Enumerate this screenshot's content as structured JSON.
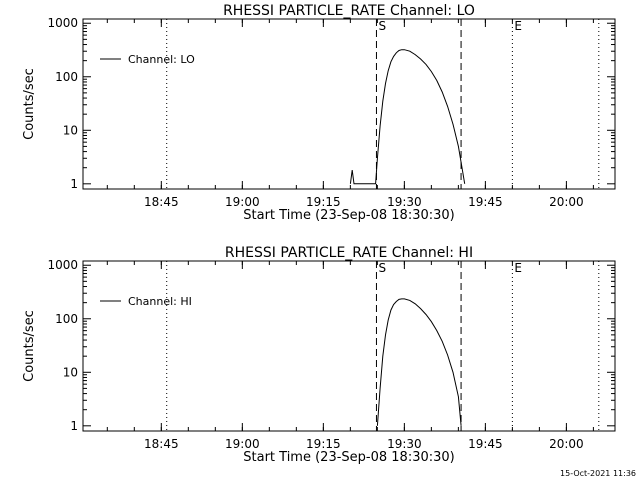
{
  "footer_timestamp": "15-Oct-2021 11:36",
  "chart_data": [
    {
      "type": "line",
      "title": "RHESSI PARTICLE_RATE Channel: LO",
      "xlabel": "Start Time (23-Sep-08 18:30:30)",
      "ylabel": "Counts/sec",
      "yscale": "log",
      "ylim": [
        0.8,
        1200
      ],
      "xlim": [
        "18:30:30",
        "20:09:00"
      ],
      "x_ticks": [
        "18:45",
        "19:00",
        "19:15",
        "19:30",
        "19:45",
        "20:00"
      ],
      "y_ticks": [
        "1",
        "10",
        "100",
        "1000"
      ],
      "legend": {
        "label": "Channel: LO",
        "placement": "top-left"
      },
      "markers": [
        {
          "time": "18:46:00",
          "style": "dotted",
          "label": ""
        },
        {
          "time": "19:24:50",
          "style": "dashed",
          "label": "S"
        },
        {
          "time": "19:40:30",
          "style": "dashed",
          "label": ""
        },
        {
          "time": "19:50:00",
          "style": "dotted",
          "label": "E"
        },
        {
          "time": "20:06:00",
          "style": "dotted",
          "label": ""
        }
      ],
      "series": [
        {
          "name": "Channel: LO",
          "x": [
            "19:20:00",
            "19:20:20",
            "19:20:40",
            "19:24:40",
            "19:25:00",
            "19:25:30",
            "19:26:00",
            "19:26:30",
            "19:27:00",
            "19:27:30",
            "19:28:00",
            "19:28:30",
            "19:29:00",
            "19:29:30",
            "19:30:00",
            "19:31:00",
            "19:32:00",
            "19:33:00",
            "19:34:00",
            "19:35:00",
            "19:36:00",
            "19:37:00",
            "19:38:00",
            "19:39:00",
            "19:40:00",
            "19:40:40",
            "19:41:10"
          ],
          "y": [
            1.0,
            1.8,
            1.0,
            1.0,
            3,
            12,
            35,
            75,
            130,
            190,
            240,
            280,
            310,
            320,
            320,
            300,
            260,
            215,
            170,
            125,
            85,
            52,
            28,
            13,
            5,
            2,
            1.0
          ]
        }
      ]
    },
    {
      "type": "line",
      "title": "RHESSI PARTICLE_RATE Channel: HI",
      "xlabel": "Start Time (23-Sep-08 18:30:30)",
      "ylabel": "Counts/sec",
      "yscale": "log",
      "ylim": [
        0.8,
        1200
      ],
      "xlim": [
        "18:30:30",
        "20:09:00"
      ],
      "x_ticks": [
        "18:45",
        "19:00",
        "19:15",
        "19:30",
        "19:45",
        "20:00"
      ],
      "y_ticks": [
        "1",
        "10",
        "100",
        "1000"
      ],
      "legend": {
        "label": "Channel: HI",
        "placement": "top-left"
      },
      "markers": [
        {
          "time": "18:46:00",
          "style": "dotted",
          "label": ""
        },
        {
          "time": "19:24:50",
          "style": "dashed",
          "label": "S"
        },
        {
          "time": "19:40:30",
          "style": "dashed",
          "label": ""
        },
        {
          "time": "19:50:00",
          "style": "dotted",
          "label": "E"
        },
        {
          "time": "20:06:00",
          "style": "dotted",
          "label": ""
        }
      ],
      "series": [
        {
          "name": "Channel: HI",
          "x": [
            "19:25:00",
            "19:25:30",
            "19:26:00",
            "19:26:30",
            "19:27:00",
            "19:27:30",
            "19:28:00",
            "19:28:30",
            "19:29:00",
            "19:29:30",
            "19:30:00",
            "19:31:00",
            "19:32:00",
            "19:33:00",
            "19:34:00",
            "19:35:00",
            "19:36:00",
            "19:37:00",
            "19:38:00",
            "19:39:00",
            "19:40:00",
            "19:40:30"
          ],
          "y": [
            1.0,
            5,
            20,
            50,
            95,
            145,
            185,
            210,
            230,
            235,
            235,
            220,
            190,
            155,
            120,
            88,
            60,
            38,
            21,
            10,
            3.5,
            1.0
          ]
        }
      ]
    }
  ]
}
